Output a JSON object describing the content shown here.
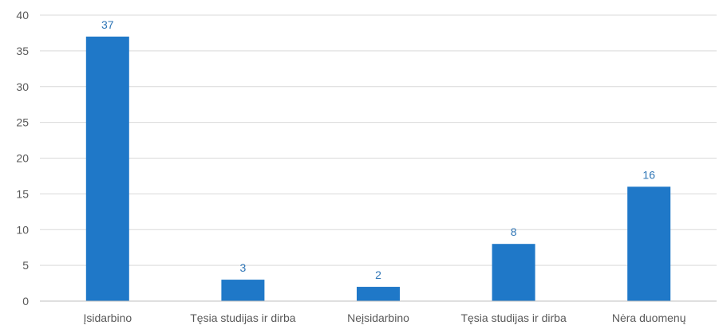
{
  "chart_data": {
    "type": "bar",
    "categories": [
      "Įsidarbino",
      "Tęsia studijas ir dirba",
      "Neįsidarbino",
      "Tęsia studijas ir dirba",
      "Nėra duomenų"
    ],
    "values": [
      37,
      3,
      2,
      8,
      16
    ],
    "data_labels": [
      "37",
      "3",
      "2",
      "8",
      "16"
    ],
    "ylim": [
      0,
      40
    ],
    "yticks": [
      0,
      5,
      10,
      15,
      20,
      25,
      30,
      35,
      40
    ],
    "grid": true,
    "legend": "none",
    "colors": {
      "bar": "#1f78c8",
      "data_label": "#2e75b6"
    }
  }
}
